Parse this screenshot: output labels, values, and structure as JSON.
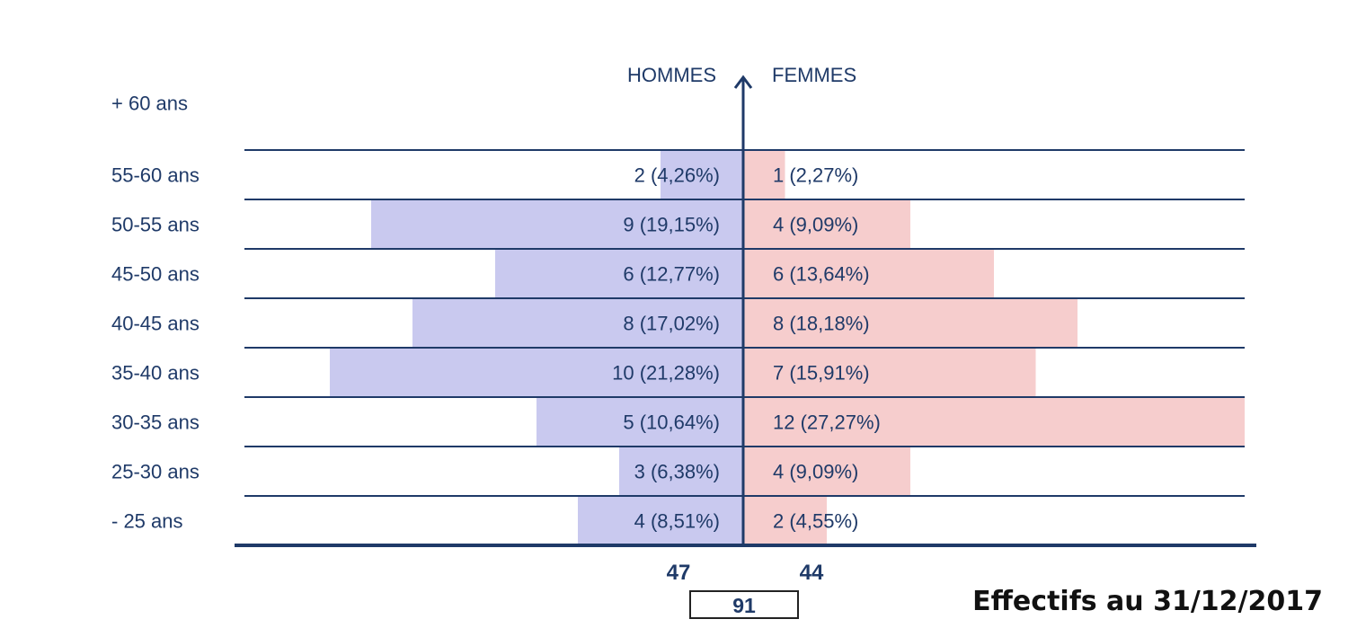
{
  "chart_data": {
    "type": "bar",
    "title": "",
    "left_header": "HOMMES",
    "right_header": "FEMMES",
    "categories": [
      "+ 60 ans",
      "55-60 ans",
      "50-55 ans",
      "45-50 ans",
      "40-45 ans",
      "35-40 ans",
      "30-35 ans",
      "25-30 ans",
      "- 25 ans"
    ],
    "series": [
      {
        "name": "HOMMES",
        "values": [
          0,
          2,
          9,
          6,
          8,
          10,
          5,
          3,
          4
        ],
        "labels": [
          "",
          "2 (4,26%)",
          "9 (19,15%)",
          "6 (12,77%)",
          "8 (17,02%)",
          "10 (21,28%)",
          "5 (10,64%)",
          "3 (6,38%)",
          "4 (8,51%)"
        ],
        "total": "47"
      },
      {
        "name": "FEMMES",
        "values": [
          0,
          1,
          4,
          6,
          8,
          7,
          12,
          4,
          2
        ],
        "labels": [
          "",
          "1 (2,27%)",
          "4 (9,09%)",
          "6 (13,64%)",
          "8 (18,18%)",
          "7 (15,91%)",
          "12 (27,27%)",
          "4 (9,09%)",
          "2 (4,55%)"
        ],
        "total": "44"
      }
    ],
    "grand_total": "91",
    "colors": {
      "men": "#c9c9ef",
      "women": "#f6cdcd",
      "axis": "#1f3a68",
      "text": "#1f3a68"
    }
  },
  "footnote": "Effectifs au 31/12/2017"
}
